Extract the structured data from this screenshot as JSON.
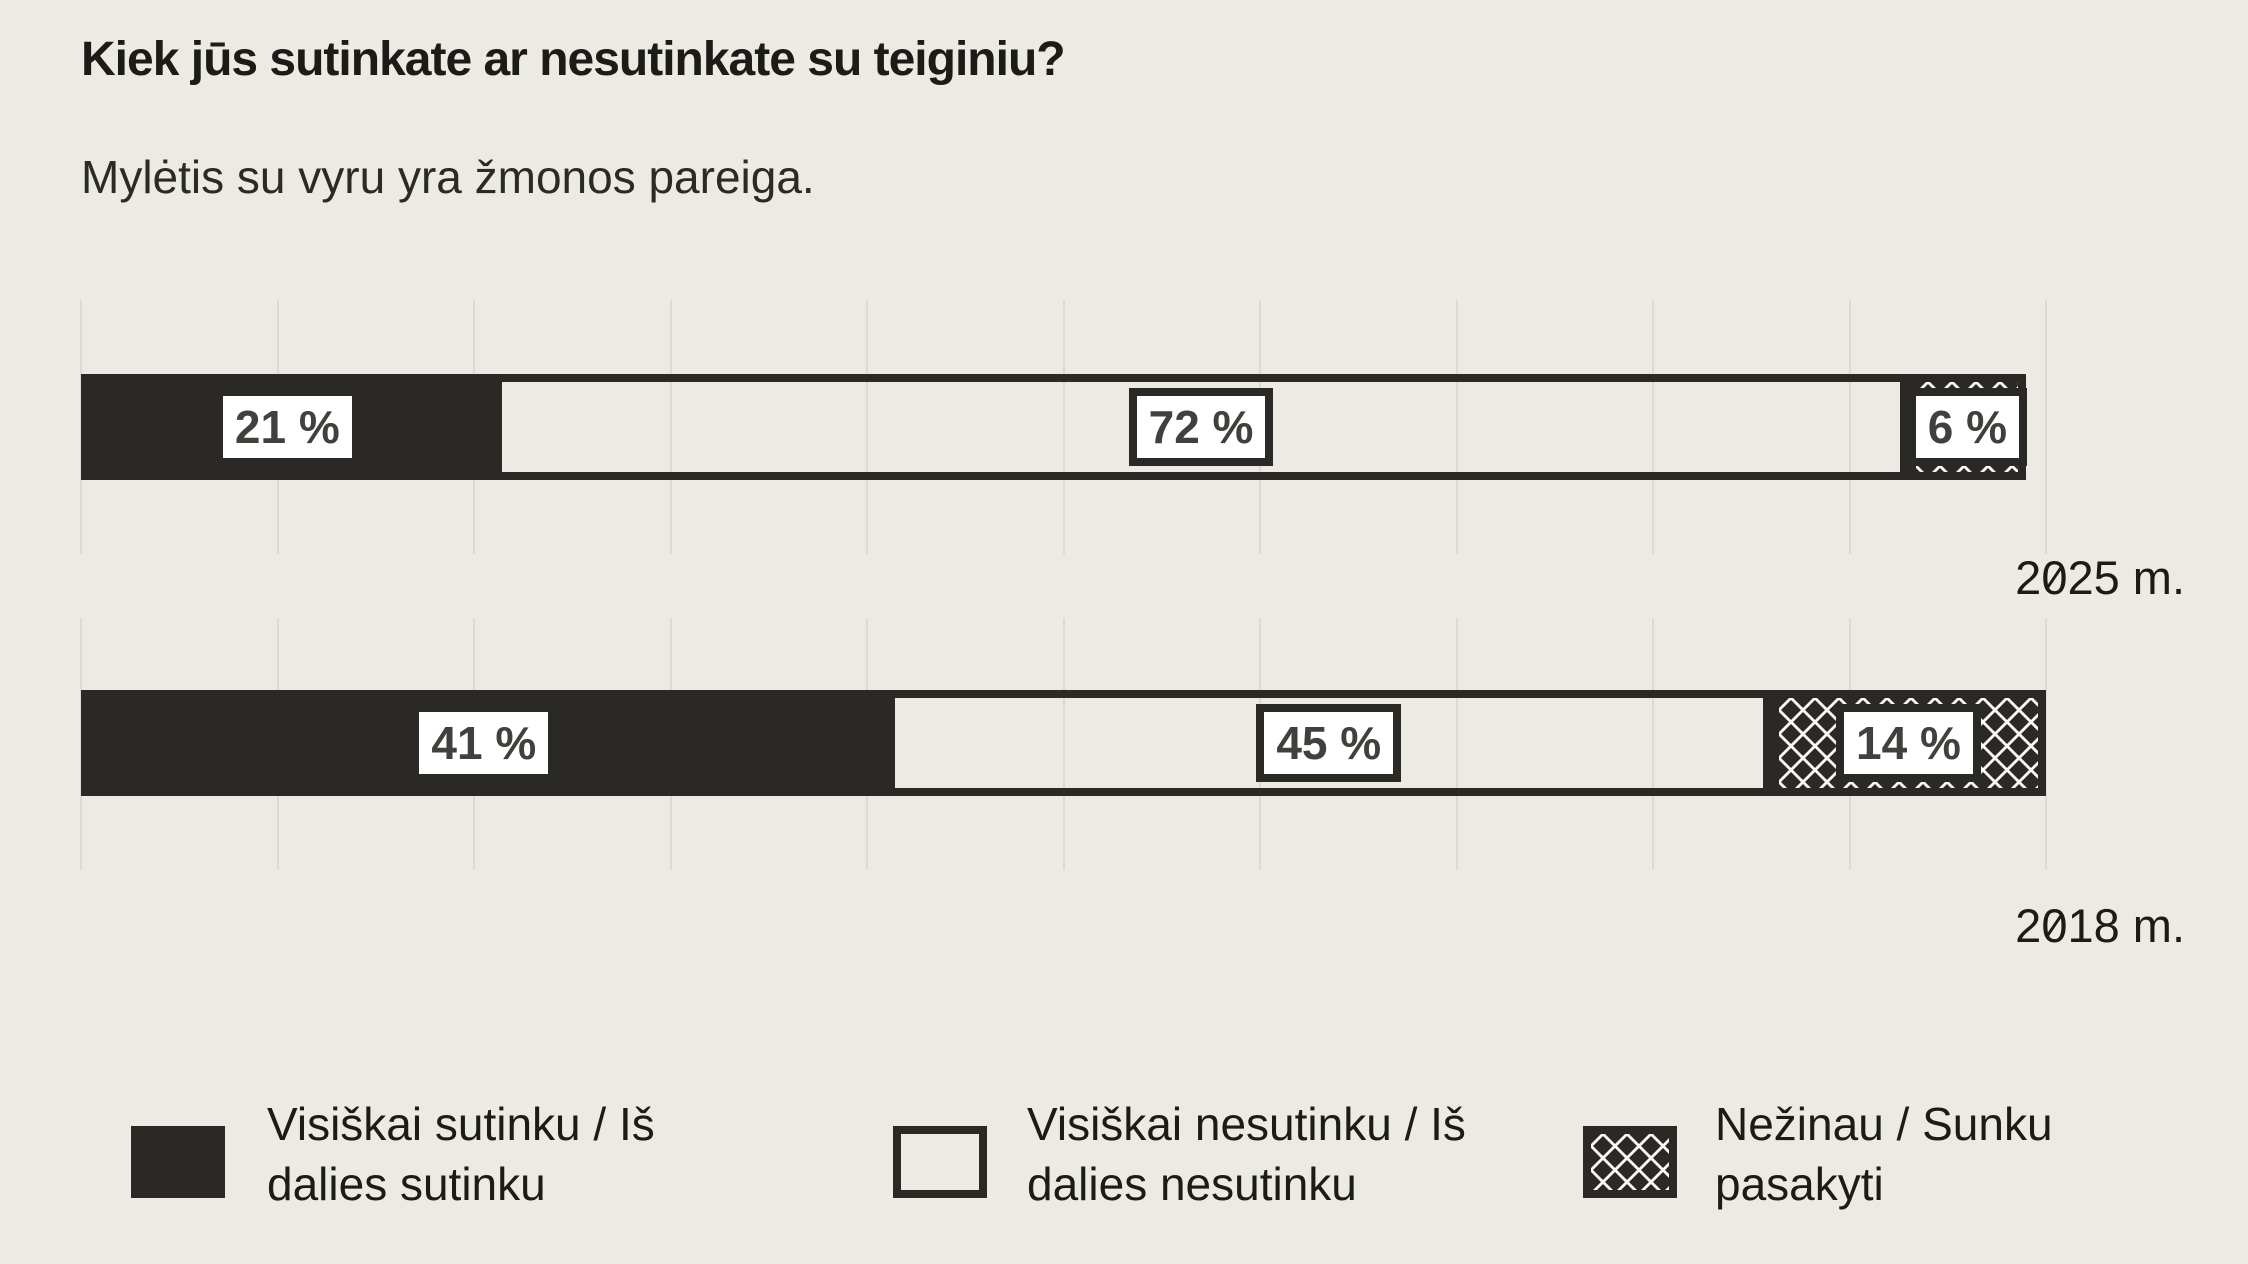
{
  "header": {
    "title": "Kiek jūs sutinkate ar nesutinkate su teiginiu?",
    "subtitle": "Mylėtis su vyru yra žmonos pareiga."
  },
  "icons": {
    "chart_menu": "two-horizontal-rounded-bars"
  },
  "chart_data": {
    "type": "bar",
    "orientation": "horizontal",
    "stacked": true,
    "unit": "%",
    "categories": [
      "2025 m.",
      "2018 m."
    ],
    "series": [
      {
        "name": "Visiškai sutinku / Iš dalies sutinku",
        "style": "solid",
        "values": [
          21,
          41
        ]
      },
      {
        "name": "Visiškai nesutinku / Iš dalies nesutinku",
        "style": "outline",
        "values": [
          72,
          45
        ]
      },
      {
        "name": "Nežinau / Sunku pasakyti",
        "style": "pattern",
        "values": [
          6,
          14
        ]
      }
    ],
    "value_label_format": "{v} %",
    "xlim": [
      0,
      100
    ],
    "gridline_step": 10,
    "grid": true,
    "legend_position": "bottom"
  },
  "legend": {
    "items": [
      {
        "label": "Visiškai sutinku / Iš dalies sutinku",
        "swatch": "solid"
      },
      {
        "label": "Visiškai nesutinku / Iš dalies nesutinku",
        "swatch": "outline"
      },
      {
        "label": "Nežinau / Sunku pasakyti",
        "swatch": "pattern"
      }
    ]
  },
  "colors": {
    "background": "#ECEBE3",
    "ink": "#2A2926",
    "label_box": "#FFFFFF",
    "label_text": "#41403D",
    "gridline": "#DBDAD4",
    "text": "#1C1B18",
    "pattern_base": "#FCFBF7"
  }
}
